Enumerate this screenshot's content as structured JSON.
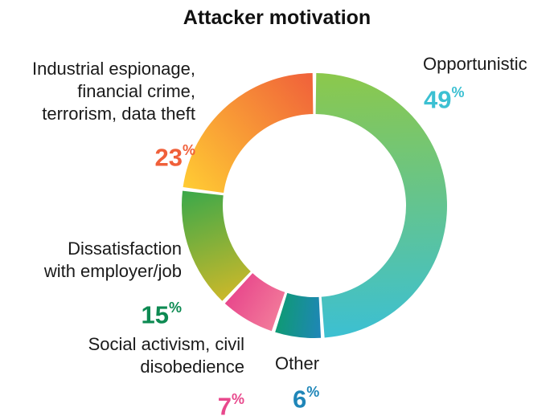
{
  "chart_data": {
    "type": "pie",
    "title": "Attacker motivation",
    "slices": [
      {
        "label": "Opportunistic",
        "value": 49,
        "color": "#3cc0d2",
        "grad_from": "#8cc84b",
        "grad_to": "#3cc0d2"
      },
      {
        "label": "Other",
        "value": 6,
        "color": "#1f86b8",
        "grad_from": "#1f86b8",
        "grad_to": "#0f9a74"
      },
      {
        "label": "Social activism, civil disobedience",
        "value": 7,
        "color": "#e8488c",
        "grad_from": "#f27a9a",
        "grad_to": "#e8488c"
      },
      {
        "label": "Dissatisfaction with employer/job",
        "value": 15,
        "color": "#0d8a52",
        "grad_from": "#cbb82a",
        "grad_to": "#3aa84a"
      },
      {
        "label": "Industrial espionage, financial crime, terrorism, data theft",
        "value": 23,
        "color": "#f0603a",
        "grad_from": "#ffcc33",
        "grad_to": "#f0603a"
      }
    ]
  },
  "labels": {
    "opportunistic": {
      "text": "Opportunistic",
      "pct": "49",
      "sym": "%"
    },
    "espionage": {
      "lines": [
        "Industrial espionage,",
        "financial crime,",
        "terrorism, data theft"
      ],
      "pct": "23",
      "sym": "%"
    },
    "dissatisfaction": {
      "lines": [
        "Dissatisfaction",
        "with employer/job"
      ],
      "pct": "15",
      "sym": "%"
    },
    "activism": {
      "lines": [
        "Social activism, civil",
        "disobedience"
      ],
      "pct": "7",
      "sym": "%"
    },
    "other": {
      "text": "Other",
      "pct": "6",
      "sym": "%"
    }
  }
}
